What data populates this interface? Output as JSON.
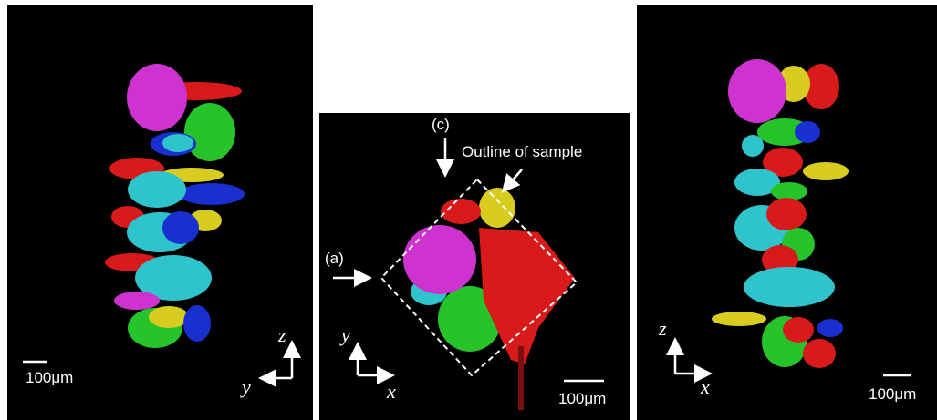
{
  "panels": [
    {
      "scale_bar": "100μm",
      "axes": {
        "vertical": "z",
        "horizontal": "y"
      }
    },
    {
      "labels": {
        "c": "(c)",
        "outline": "Outline of sample",
        "a": "(a)"
      },
      "scale_bar": "100μm",
      "axes": {
        "vertical": "y",
        "horizontal": "x"
      }
    },
    {
      "scale_bar": "100μm",
      "axes": {
        "vertical": "z",
        "horizontal": "x"
      }
    }
  ]
}
